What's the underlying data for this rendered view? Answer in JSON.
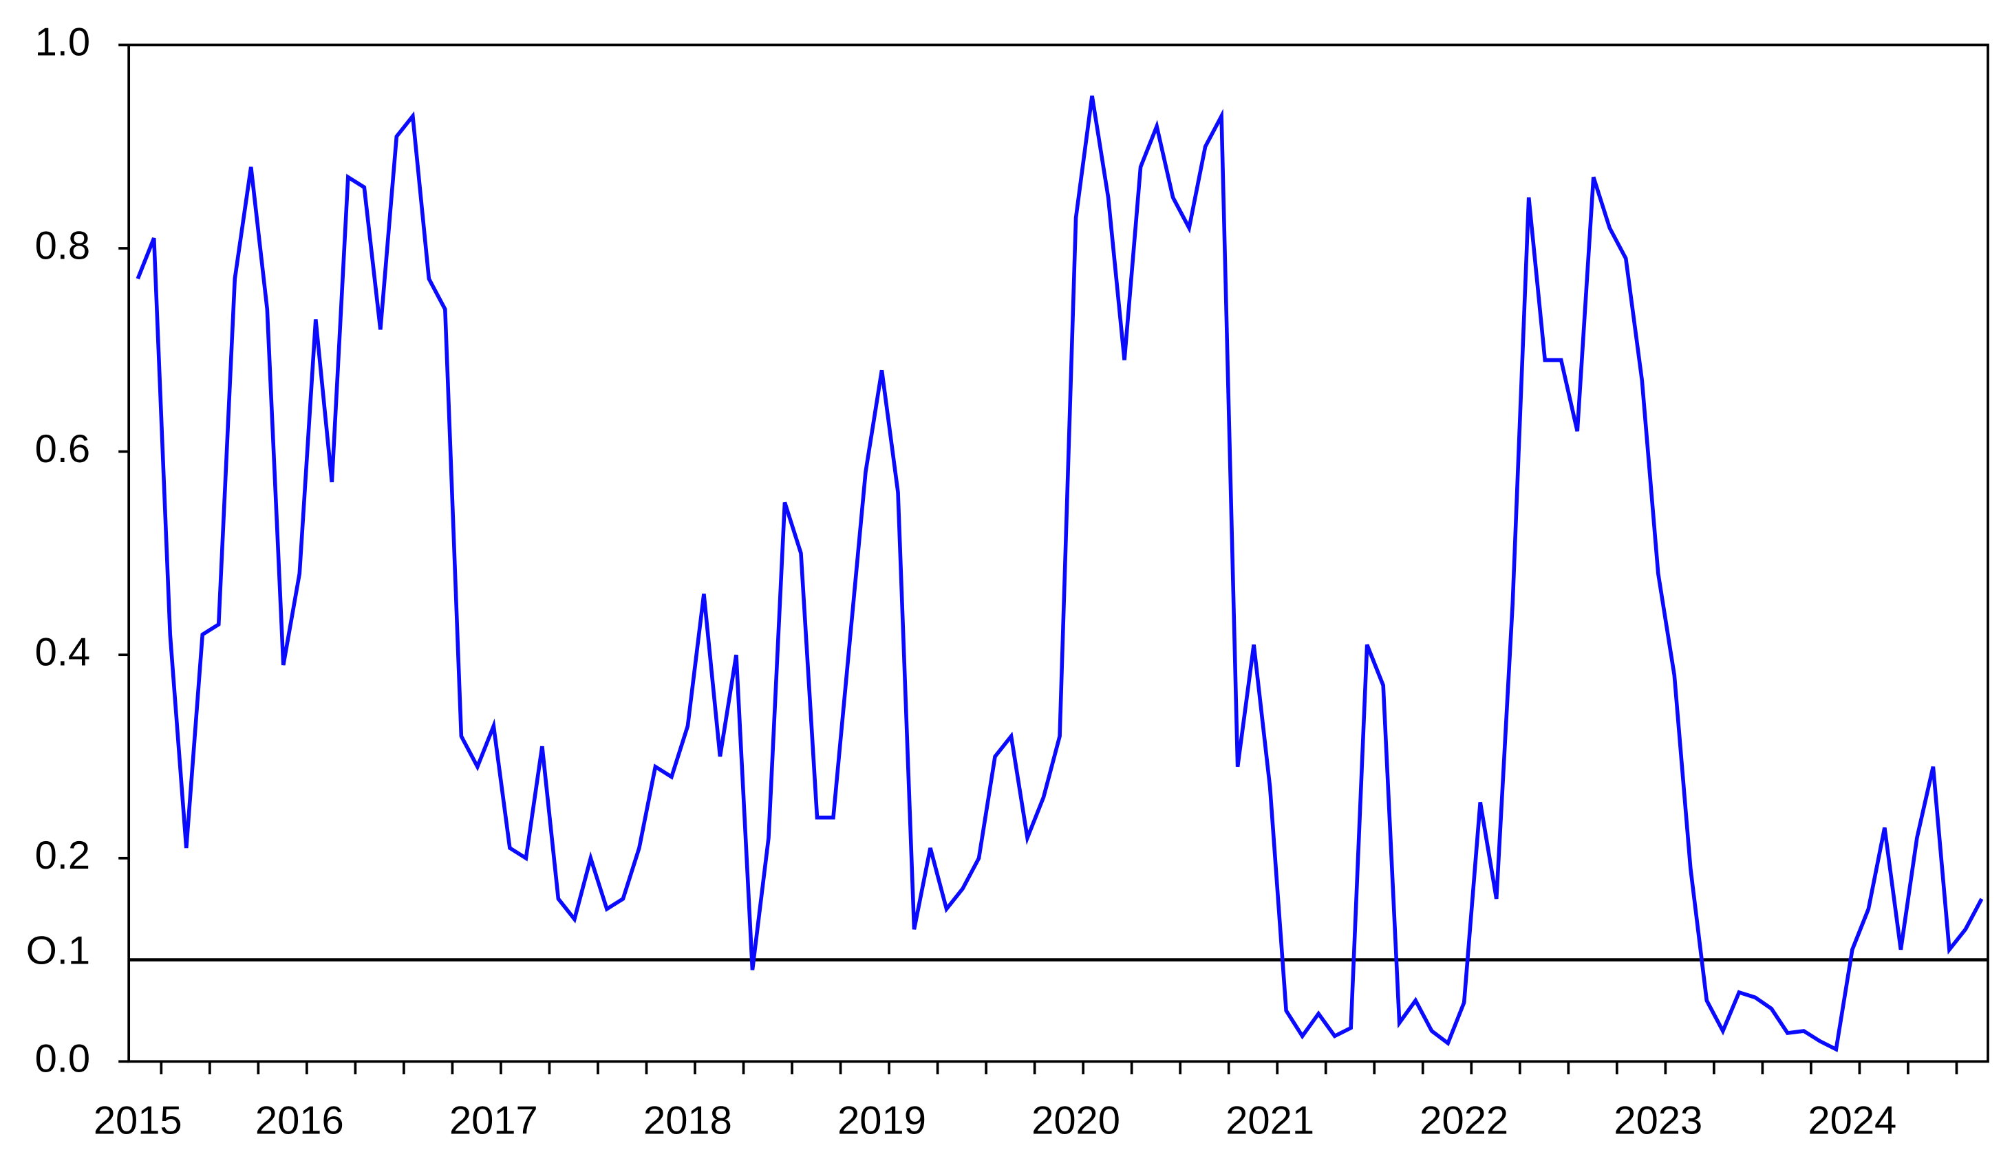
{
  "chart_data": {
    "type": "line",
    "categories": [
      "2015",
      null,
      null,
      null,
      null,
      null,
      null,
      null,
      null,
      null,
      "2016",
      null,
      null,
      null,
      null,
      null,
      null,
      null,
      null,
      null,
      null,
      null,
      "2017",
      null,
      null,
      null,
      null,
      null,
      null,
      null,
      null,
      null,
      null,
      null,
      "2018",
      null,
      null,
      null,
      null,
      null,
      null,
      null,
      null,
      null,
      null,
      null,
      "2019",
      null,
      null,
      null,
      null,
      null,
      null,
      null,
      null,
      null,
      null,
      null,
      "2020",
      null,
      null,
      null,
      null,
      null,
      null,
      null,
      null,
      null,
      null,
      null,
      "2021",
      null,
      null,
      null,
      null,
      null,
      null,
      null,
      null,
      null,
      null,
      null,
      "2022",
      null,
      null,
      null,
      null,
      null,
      null,
      null,
      null,
      null,
      null,
      null,
      "2023",
      null,
      null,
      null,
      null,
      null,
      null,
      null,
      null,
      null,
      null,
      null,
      "2024",
      null,
      null,
      null,
      null,
      null,
      null,
      null,
      null
    ],
    "values": [
      0.77,
      0.81,
      0.42,
      0.21,
      0.42,
      0.43,
      0.77,
      0.88,
      0.74,
      0.39,
      0.48,
      0.73,
      0.57,
      0.87,
      0.86,
      0.72,
      0.91,
      0.93,
      0.77,
      0.74,
      0.32,
      0.29,
      0.33,
      0.21,
      0.2,
      0.31,
      0.16,
      0.14,
      0.2,
      0.15,
      0.16,
      0.21,
      0.29,
      0.28,
      0.33,
      0.46,
      0.3,
      0.4,
      0.09,
      0.22,
      0.55,
      0.5,
      0.24,
      0.24,
      0.41,
      0.58,
      0.68,
      0.56,
      0.13,
      0.21,
      0.15,
      0.17,
      0.2,
      0.3,
      0.32,
      0.22,
      0.26,
      0.32,
      0.83,
      0.95,
      0.85,
      0.69,
      0.88,
      0.92,
      0.85,
      0.82,
      0.9,
      0.93,
      0.29,
      0.41,
      0.27,
      0.05,
      0.025,
      0.047,
      0.025,
      0.033,
      0.41,
      0.37,
      0.038,
      0.06,
      0.03,
      0.018,
      0.058,
      0.255,
      0.16,
      0.45,
      0.85,
      0.69,
      0.69,
      0.62,
      0.87,
      0.82,
      0.79,
      0.67,
      0.48,
      0.38,
      0.19,
      0.06,
      0.03,
      0.068,
      0.063,
      0.052,
      0.028,
      0.03,
      0.02,
      0.012,
      0.11,
      0.15,
      0.23,
      0.11,
      0.22,
      0.29,
      0.11,
      0.13,
      0.16
    ],
    "color": "#0a0aff",
    "ylim": [
      0,
      1
    ],
    "yticks": [
      {
        "value": 0,
        "label": "0.0"
      },
      0.2,
      0.4,
      0.6,
      0.8,
      {
        "value": 1,
        "label": "1.0"
      }
    ],
    "reference_line": {
      "value": 0.1,
      "label": "O.1"
    },
    "grid": false
  }
}
